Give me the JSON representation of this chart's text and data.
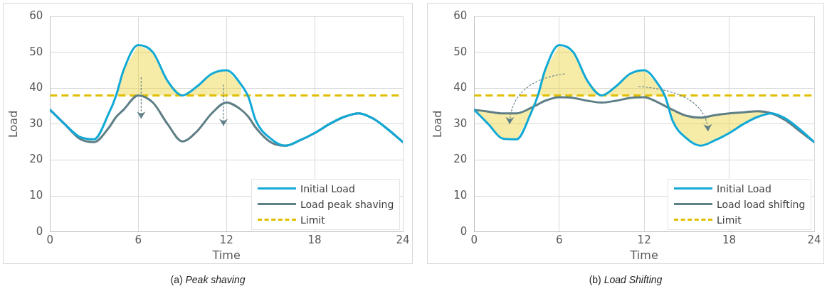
{
  "chart_data": [
    {
      "type": "line",
      "xlabel": "Time",
      "ylabel": "Load",
      "xlim": [
        0,
        24
      ],
      "xticks": [
        0,
        6,
        12,
        18,
        24
      ],
      "ylim": [
        0,
        60
      ],
      "yticks": [
        0,
        10,
        20,
        30,
        40,
        50,
        60
      ],
      "grid": true,
      "legend": "bottom right",
      "marker": "none",
      "line_style": "solid",
      "annotations": [
        "(a) Peak shaving"
      ],
      "ref_lines": [
        {
          "axis": "y",
          "value": 38,
          "label": "Limit",
          "color": "#e0be00",
          "line_style": "dashed"
        }
      ],
      "series": [
        {
          "name": "Initial Load",
          "color": "#12a9d6",
          "x": [
            0,
            1,
            2,
            3,
            4,
            4.5,
            5,
            6,
            7,
            8,
            9,
            10,
            11,
            12,
            13,
            13.5,
            14,
            15,
            16,
            17,
            18,
            19,
            20,
            21,
            22,
            23,
            24
          ],
          "values": [
            34,
            30,
            26.5,
            25.8,
            33,
            38,
            45,
            52,
            50,
            42,
            38,
            40.5,
            44,
            45,
            41,
            37.5,
            31,
            26,
            24,
            25.5,
            27.5,
            30,
            32,
            33,
            31.5,
            28.5,
            25
          ],
          "lower": [
            null,
            null,
            null,
            null,
            null,
            38,
            38,
            38,
            38,
            38,
            38,
            38,
            38,
            38,
            38,
            null,
            null,
            null,
            null,
            null,
            null,
            null,
            null,
            null,
            null,
            null,
            null
          ],
          "upper": [
            null,
            null,
            null,
            null,
            null,
            38,
            45,
            52,
            50,
            42,
            38,
            40.5,
            44,
            45,
            41,
            null,
            null,
            null,
            null,
            null,
            null,
            null,
            null,
            null,
            null,
            null,
            null
          ]
        },
        {
          "name": "Load peak shaving",
          "color": "#5f7f86",
          "x": [
            0,
            1,
            2,
            3,
            4,
            4.5,
            5,
            6,
            7,
            8,
            9,
            10,
            11,
            12,
            13,
            13.5,
            14,
            15,
            16,
            17,
            18,
            19,
            20,
            21,
            22,
            23,
            24
          ],
          "values": [
            34,
            30,
            26,
            25,
            29,
            32,
            34,
            38,
            36,
            30,
            25.2,
            28,
            33,
            36,
            34,
            32,
            29,
            25,
            24,
            25.5,
            27.5,
            30,
            32,
            33,
            31.5,
            28.5,
            25
          ]
        }
      ]
    },
    {
      "type": "line",
      "xlabel": "Time",
      "ylabel": "Load",
      "xlim": [
        0,
        24
      ],
      "xticks": [
        0,
        6,
        12,
        18,
        24
      ],
      "ylim": [
        0,
        60
      ],
      "yticks": [
        0,
        10,
        20,
        30,
        40,
        50,
        60
      ],
      "grid": true,
      "legend": "bottom right",
      "marker": "none",
      "line_style": "solid",
      "annotations": [
        "(b) Load Shifting"
      ],
      "ref_lines": [
        {
          "axis": "y",
          "value": 38,
          "label": "Limit",
          "color": "#e0be00",
          "line_style": "dashed"
        }
      ],
      "series": [
        {
          "name": "Initial Load",
          "color": "#12a9d6",
          "x": [
            0,
            1,
            2,
            3,
            4,
            4.5,
            5,
            6,
            7,
            8,
            9,
            10,
            11,
            12,
            13,
            13.5,
            14,
            15,
            16,
            17,
            18,
            19,
            20,
            21,
            22,
            23,
            24
          ],
          "values": [
            34,
            30,
            26,
            25.8,
            33,
            38,
            45,
            52,
            50,
            42,
            38,
            40.5,
            44,
            45,
            41,
            37.5,
            31,
            26,
            24,
            25.5,
            27.5,
            30,
            32,
            33,
            31.5,
            28.5,
            25
          ],
          "lower": [
            34,
            30,
            26,
            25.8,
            33,
            38,
            38,
            38,
            38,
            38,
            38,
            38,
            38,
            38,
            38,
            37.5,
            31,
            26,
            24,
            25.5,
            27.5,
            30,
            32,
            33,
            null,
            null,
            null
          ],
          "upper": [
            34,
            33.5,
            33,
            33,
            34.5,
            38,
            45,
            52,
            50,
            42,
            38,
            40.5,
            44,
            45,
            41,
            37.5,
            34,
            32.3,
            31.8,
            32.5,
            33,
            33.3,
            33.6,
            33,
            null,
            null,
            null
          ]
        },
        {
          "name": "Load load shifting",
          "color": "#5f7f86",
          "x": [
            0,
            1,
            2,
            3,
            4,
            4.5,
            5,
            6,
            7,
            8,
            9,
            10,
            11,
            12,
            13,
            13.5,
            14,
            15,
            16,
            17,
            18,
            19,
            20,
            21,
            22,
            23,
            24
          ],
          "values": [
            34,
            33.5,
            33,
            33,
            34.5,
            35.5,
            36.5,
            37.5,
            37.3,
            36.5,
            36,
            36.5,
            37.3,
            37.5,
            36,
            35,
            34,
            32.3,
            31.8,
            32.5,
            33,
            33.3,
            33.6,
            33,
            31,
            28,
            25
          ]
        }
      ]
    }
  ]
}
